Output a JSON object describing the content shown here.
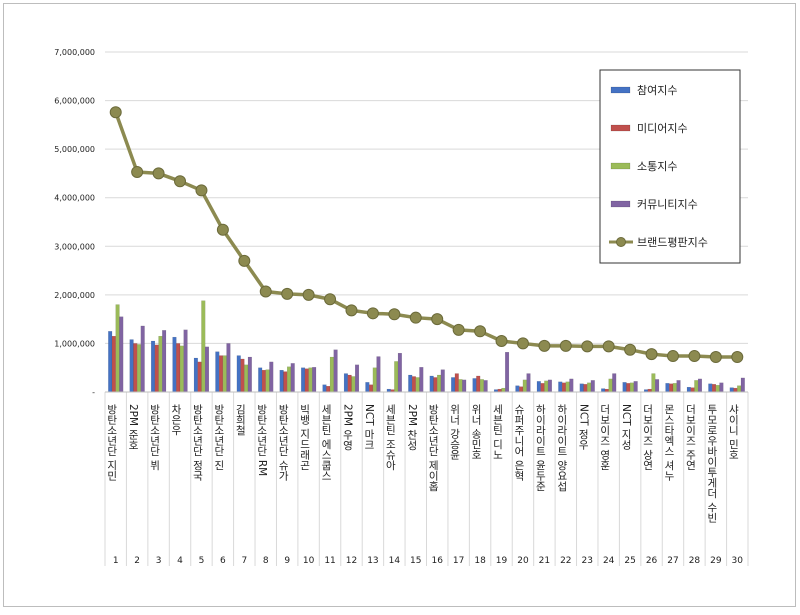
{
  "chart_data": {
    "type": "bar",
    "title": "",
    "xlabel": "",
    "ylabel": "",
    "ylim": [
      0,
      7000000
    ],
    "y_ticks": [
      "-",
      "1,000,000",
      "2,000,000",
      "3,000,000",
      "4,000,000",
      "5,000,000",
      "6,000,000",
      "7,000,000"
    ],
    "grid": true,
    "legend_position": "top-right",
    "categories": [
      "방탄소년단 지민",
      "2PM 준호",
      "방탄소년단 뷔",
      "차은우",
      "방탄소년단 정국",
      "방탄소년단 진",
      "김희철",
      "방탄소년단 RM",
      "방탄소년단 슈가",
      "빅뱅 지드래곤",
      "세븐틴 에스쿱스",
      "2PM 우영",
      "NCT 마크",
      "세븐틴 조슈아",
      "2PM 찬성",
      "방탄소년단 제이홉",
      "위너 강승윤",
      "위너 송민호",
      "세븐틴 디노",
      "슈퍼주니어 은혁",
      "하이라이트 윤두준",
      "하이라이트 양요섭",
      "NCT 정우",
      "더보이즈 영훈",
      "NCT 지성",
      "더보이즈 상연",
      "몬스타엑스 셔누",
      "더보이즈 주연",
      "투모로우바이투게더 수빈",
      "샤이니 민호"
    ],
    "ranks": [
      "1",
      "2",
      "3",
      "4",
      "5",
      "6",
      "7",
      "8",
      "9",
      "10",
      "11",
      "12",
      "13",
      "14",
      "15",
      "16",
      "17",
      "18",
      "19",
      "20",
      "21",
      "22",
      "23",
      "24",
      "25",
      "26",
      "27",
      "28",
      "29",
      "30"
    ],
    "series": [
      {
        "name": "참여지수",
        "kind": "bar",
        "color": "#4472C4",
        "values": [
          1250000,
          1080000,
          1050000,
          1130000,
          700000,
          830000,
          750000,
          500000,
          450000,
          500000,
          150000,
          380000,
          200000,
          60000,
          350000,
          330000,
          300000,
          280000,
          50000,
          130000,
          220000,
          210000,
          170000,
          70000,
          200000,
          50000,
          180000,
          100000,
          170000,
          90000
        ]
      },
      {
        "name": "미디어지수",
        "kind": "bar",
        "color": "#C0504D",
        "values": [
          1150000,
          1000000,
          970000,
          1000000,
          620000,
          750000,
          680000,
          450000,
          420000,
          480000,
          120000,
          350000,
          150000,
          50000,
          320000,
          300000,
          380000,
          330000,
          60000,
          110000,
          180000,
          190000,
          160000,
          60000,
          180000,
          60000,
          170000,
          90000,
          160000,
          80000
        ]
      },
      {
        "name": "소통지수",
        "kind": "bar",
        "color": "#9BBB59",
        "values": [
          1800000,
          980000,
          1150000,
          950000,
          1880000,
          750000,
          560000,
          460000,
          520000,
          500000,
          720000,
          320000,
          500000,
          630000,
          300000,
          350000,
          260000,
          260000,
          80000,
          250000,
          230000,
          210000,
          190000,
          270000,
          190000,
          380000,
          180000,
          240000,
          140000,
          130000
        ]
      },
      {
        "name": "커뮤니티지수",
        "kind": "bar",
        "color": "#8064A2",
        "values": [
          1550000,
          1360000,
          1270000,
          1280000,
          930000,
          1000000,
          720000,
          620000,
          590000,
          510000,
          870000,
          560000,
          730000,
          800000,
          510000,
          460000,
          250000,
          240000,
          820000,
          380000,
          250000,
          270000,
          240000,
          380000,
          220000,
          260000,
          240000,
          270000,
          190000,
          290000
        ]
      },
      {
        "name": "브랜드평판지수",
        "kind": "line",
        "color": "#8C8A50",
        "values": [
          5760000,
          4530000,
          4500000,
          4340000,
          4150000,
          3340000,
          2700000,
          2070000,
          2020000,
          2000000,
          1910000,
          1680000,
          1620000,
          1600000,
          1530000,
          1500000,
          1280000,
          1250000,
          1050000,
          1000000,
          950000,
          950000,
          940000,
          940000,
          870000,
          780000,
          740000,
          740000,
          720000,
          720000
        ]
      }
    ]
  }
}
